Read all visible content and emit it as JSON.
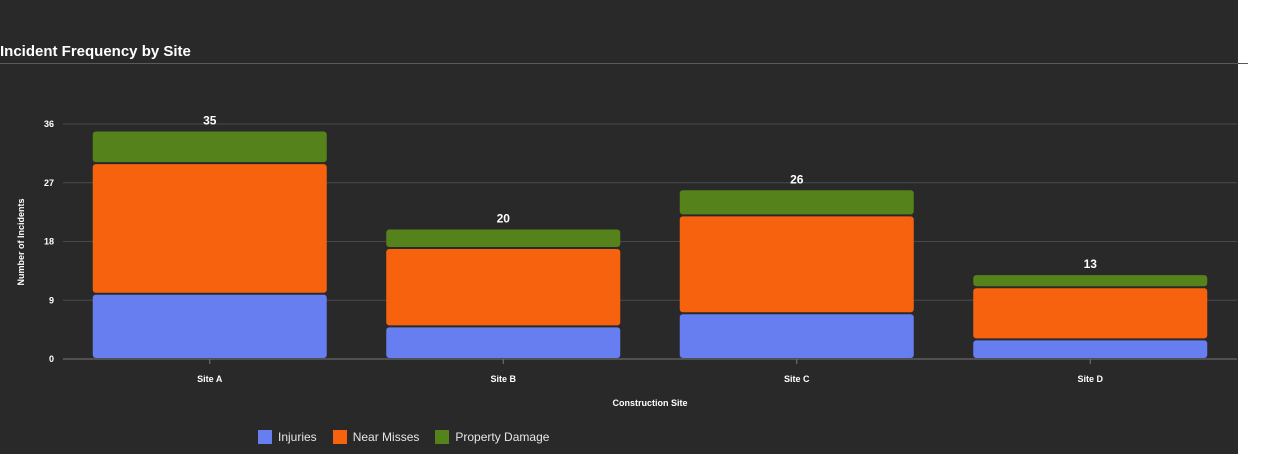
{
  "chart_data": {
    "type": "bar",
    "stacked": true,
    "title": "Incident Frequency by Site",
    "xlabel": "Construction Site",
    "ylabel": "Number of Incidents",
    "categories": [
      "Site A",
      "Site B",
      "Site C",
      "Site D"
    ],
    "series": [
      {
        "name": "Injuries",
        "values": [
          10,
          5,
          7,
          3
        ],
        "color": "#667ef0"
      },
      {
        "name": "Near Misses",
        "values": [
          20,
          12,
          15,
          8
        ],
        "color": "#f7620f"
      },
      {
        "name": "Property Damage",
        "values": [
          5,
          3,
          4,
          2
        ],
        "color": "#56821c"
      }
    ],
    "totals": [
      35,
      20,
      26,
      13
    ],
    "yticks": [
      0,
      9,
      18,
      27,
      36
    ],
    "ylim": [
      0,
      36
    ],
    "grid": true,
    "legend_position": "bottom"
  }
}
